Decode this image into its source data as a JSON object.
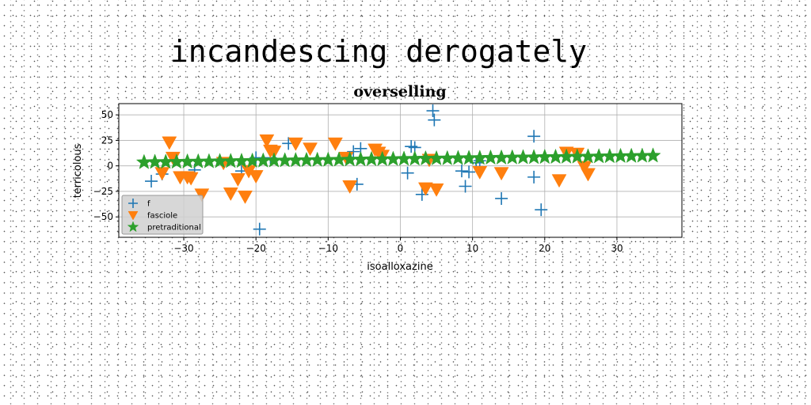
{
  "suptitle": "incandescing derogately",
  "chart_data": {
    "type": "scatter",
    "title": "overselling",
    "xlabel": "isoalloxazine",
    "ylabel": "terricolous",
    "xlim": [
      -39,
      39
    ],
    "ylim": [
      -70,
      61
    ],
    "xticks": [
      -30,
      -20,
      -10,
      0,
      10,
      20,
      30
    ],
    "yticks": [
      -50,
      -25,
      0,
      25,
      50
    ],
    "xtick_labels": [
      "−30",
      "−20",
      "−10",
      "0",
      "10",
      "20",
      "30"
    ],
    "ytick_labels": [
      "−50",
      "−25",
      "0",
      "25",
      "50"
    ],
    "grid": true,
    "legend_position": "lower-left",
    "series": [
      {
        "name": "f",
        "marker": "plus",
        "color": "#1f77b4",
        "points": [
          [
            -34.5,
            -15
          ],
          [
            -33,
            -8
          ],
          [
            -28.5,
            -4
          ],
          [
            -22,
            -5
          ],
          [
            -20,
            8
          ],
          [
            -19.5,
            -62
          ],
          [
            -18,
            8
          ],
          [
            -15.5,
            22
          ],
          [
            -6.5,
            14
          ],
          [
            -6,
            -18
          ],
          [
            -5.5,
            17
          ],
          [
            1,
            -7
          ],
          [
            1.5,
            19
          ],
          [
            2,
            18
          ],
          [
            3,
            -28
          ],
          [
            4.5,
            54
          ],
          [
            4.7,
            45
          ],
          [
            8.5,
            -5
          ],
          [
            9,
            -20
          ],
          [
            9.5,
            -6
          ],
          [
            10.5,
            3
          ],
          [
            11,
            5
          ],
          [
            14,
            -32
          ],
          [
            18.5,
            29
          ],
          [
            18.5,
            -11
          ],
          [
            19.5,
            -43
          ]
        ]
      },
      {
        "name": "fasciole",
        "marker": "triangle-down",
        "color": "#ff7f0e",
        "points": [
          [
            -33,
            -7
          ],
          [
            -32,
            23
          ],
          [
            -31.5,
            8
          ],
          [
            -30.5,
            -11
          ],
          [
            -29.5,
            -11
          ],
          [
            -29,
            -12
          ],
          [
            -27.5,
            -28
          ],
          [
            -24.5,
            3
          ],
          [
            -23.5,
            -27
          ],
          [
            -22.5,
            -13
          ],
          [
            -21.5,
            -30
          ],
          [
            -21,
            -5
          ],
          [
            -20,
            -10
          ],
          [
            -18.5,
            25
          ],
          [
            -18,
            15
          ],
          [
            -17.5,
            14
          ],
          [
            -14.5,
            22
          ],
          [
            -12.5,
            17
          ],
          [
            -9,
            22
          ],
          [
            -7.5,
            8
          ],
          [
            -7,
            -20
          ],
          [
            -3.5,
            16
          ],
          [
            -3,
            13
          ],
          [
            -2.5,
            10
          ],
          [
            3.5,
            -22
          ],
          [
            4,
            6
          ],
          [
            5,
            -23
          ],
          [
            11,
            -6
          ],
          [
            14,
            -7
          ],
          [
            22,
            -14
          ],
          [
            23,
            13
          ],
          [
            24.5,
            12
          ],
          [
            25.5,
            -1
          ],
          [
            26,
            -8
          ]
        ]
      },
      {
        "name": "pretraditional",
        "marker": "star",
        "color": "#2ca02c",
        "points": [
          [
            -35.5,
            3.5
          ],
          [
            -34,
            3.7
          ],
          [
            -32.5,
            3.8
          ],
          [
            -31,
            3.9
          ],
          [
            -29.5,
            4.1
          ],
          [
            -28,
            4.2
          ],
          [
            -26.5,
            4.3
          ],
          [
            -25,
            4.5
          ],
          [
            -23.5,
            4.6
          ],
          [
            -22,
            4.7
          ],
          [
            -20.5,
            4.9
          ],
          [
            -19,
            5
          ],
          [
            -17.5,
            5.2
          ],
          [
            -16,
            5.3
          ],
          [
            -14.5,
            5.4
          ],
          [
            -13,
            5.6
          ],
          [
            -11.5,
            5.7
          ],
          [
            -10,
            5.8
          ],
          [
            -8.5,
            6
          ],
          [
            -7,
            6.1
          ],
          [
            -5.5,
            6.2
          ],
          [
            -4,
            6.4
          ],
          [
            -2.5,
            6.5
          ],
          [
            -1,
            6.6
          ],
          [
            0.5,
            6.8
          ],
          [
            2,
            6.9
          ],
          [
            3.5,
            7.1
          ],
          [
            5,
            7.2
          ],
          [
            6.5,
            7.3
          ],
          [
            8,
            7.5
          ],
          [
            9.5,
            7.6
          ],
          [
            11,
            7.7
          ],
          [
            12.5,
            7.9
          ],
          [
            14,
            8
          ],
          [
            15.5,
            8.1
          ],
          [
            17,
            8.3
          ],
          [
            18.5,
            8.4
          ],
          [
            20,
            8.6
          ],
          [
            21.5,
            8.7
          ],
          [
            23,
            8.8
          ],
          [
            24.5,
            9
          ],
          [
            26,
            9.1
          ],
          [
            27.5,
            9.2
          ],
          [
            29,
            9.4
          ],
          [
            30.5,
            9.5
          ],
          [
            32,
            9.6
          ],
          [
            33.5,
            9.8
          ],
          [
            35,
            9.9
          ]
        ]
      }
    ]
  }
}
